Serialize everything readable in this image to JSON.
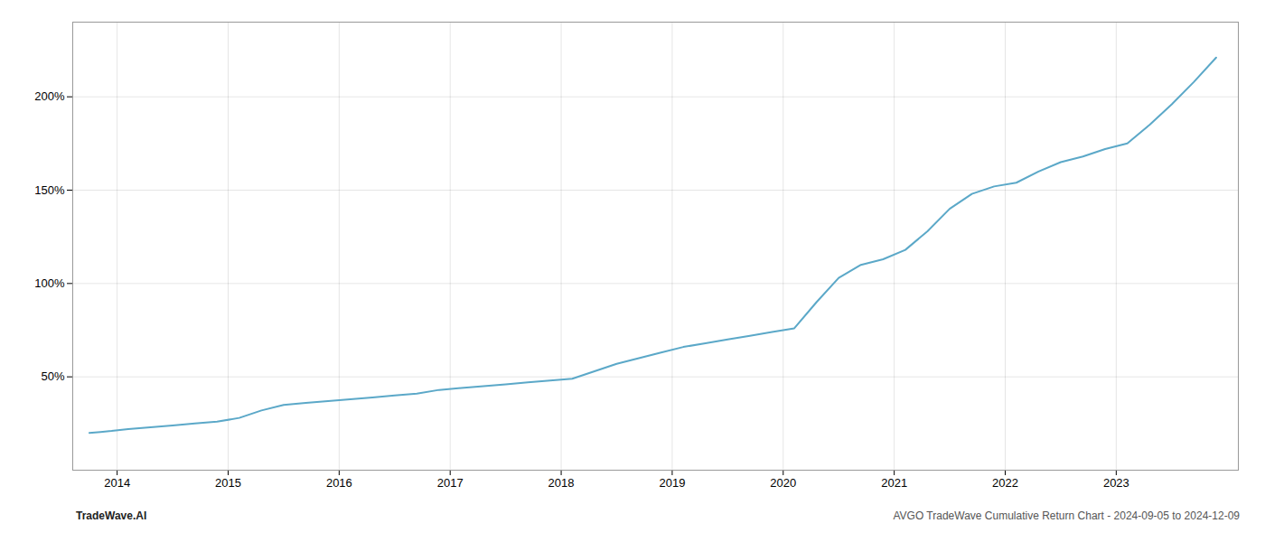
{
  "chart_data": {
    "type": "line",
    "color": "#5ba8c8",
    "x": [
      2013.75,
      2013.85,
      2013.95,
      2014.1,
      2014.3,
      2014.5,
      2014.7,
      2014.9,
      2015.1,
      2015.3,
      2015.5,
      2015.7,
      2015.9,
      2016.1,
      2016.3,
      2016.5,
      2016.7,
      2016.9,
      2017.1,
      2017.3,
      2017.5,
      2017.7,
      2017.9,
      2018.1,
      2018.3,
      2018.5,
      2018.7,
      2018.9,
      2019.1,
      2019.3,
      2019.5,
      2019.7,
      2019.9,
      2020.1,
      2020.3,
      2020.5,
      2020.7,
      2020.9,
      2021.1,
      2021.3,
      2021.5,
      2021.7,
      2021.9,
      2022.1,
      2022.3,
      2022.5,
      2022.7,
      2022.9,
      2023.1,
      2023.3,
      2023.5,
      2023.7,
      2023.9
    ],
    "values": [
      20,
      20.5,
      21,
      22,
      23,
      24,
      25,
      26,
      28,
      32,
      35,
      36,
      37,
      38,
      39,
      40,
      41,
      43,
      44,
      45,
      46,
      47,
      48,
      49,
      53,
      57,
      60,
      63,
      66,
      68,
      70,
      72,
      74,
      76,
      90,
      103,
      110,
      113,
      118,
      128,
      140,
      148,
      152,
      154,
      160,
      165,
      168,
      172,
      175,
      185,
      196,
      208,
      221
    ],
    "xlim": [
      2013.6,
      2024.1
    ],
    "xticks": [
      2014,
      2015,
      2016,
      2017,
      2018,
      2019,
      2020,
      2021,
      2022,
      2023
    ],
    "ylim": [
      0,
      240
    ],
    "yticks": [
      {
        "value": 50,
        "label": "50%"
      },
      {
        "value": 100,
        "label": "100%"
      },
      {
        "value": 150,
        "label": "150%"
      },
      {
        "value": 200,
        "label": "200%"
      }
    ],
    "grid": true,
    "annotations": [
      "TradeWave.AI",
      "AVGO TradeWave Cumulative Return Chart - 2024-09-05 to 2024-12-09"
    ]
  }
}
